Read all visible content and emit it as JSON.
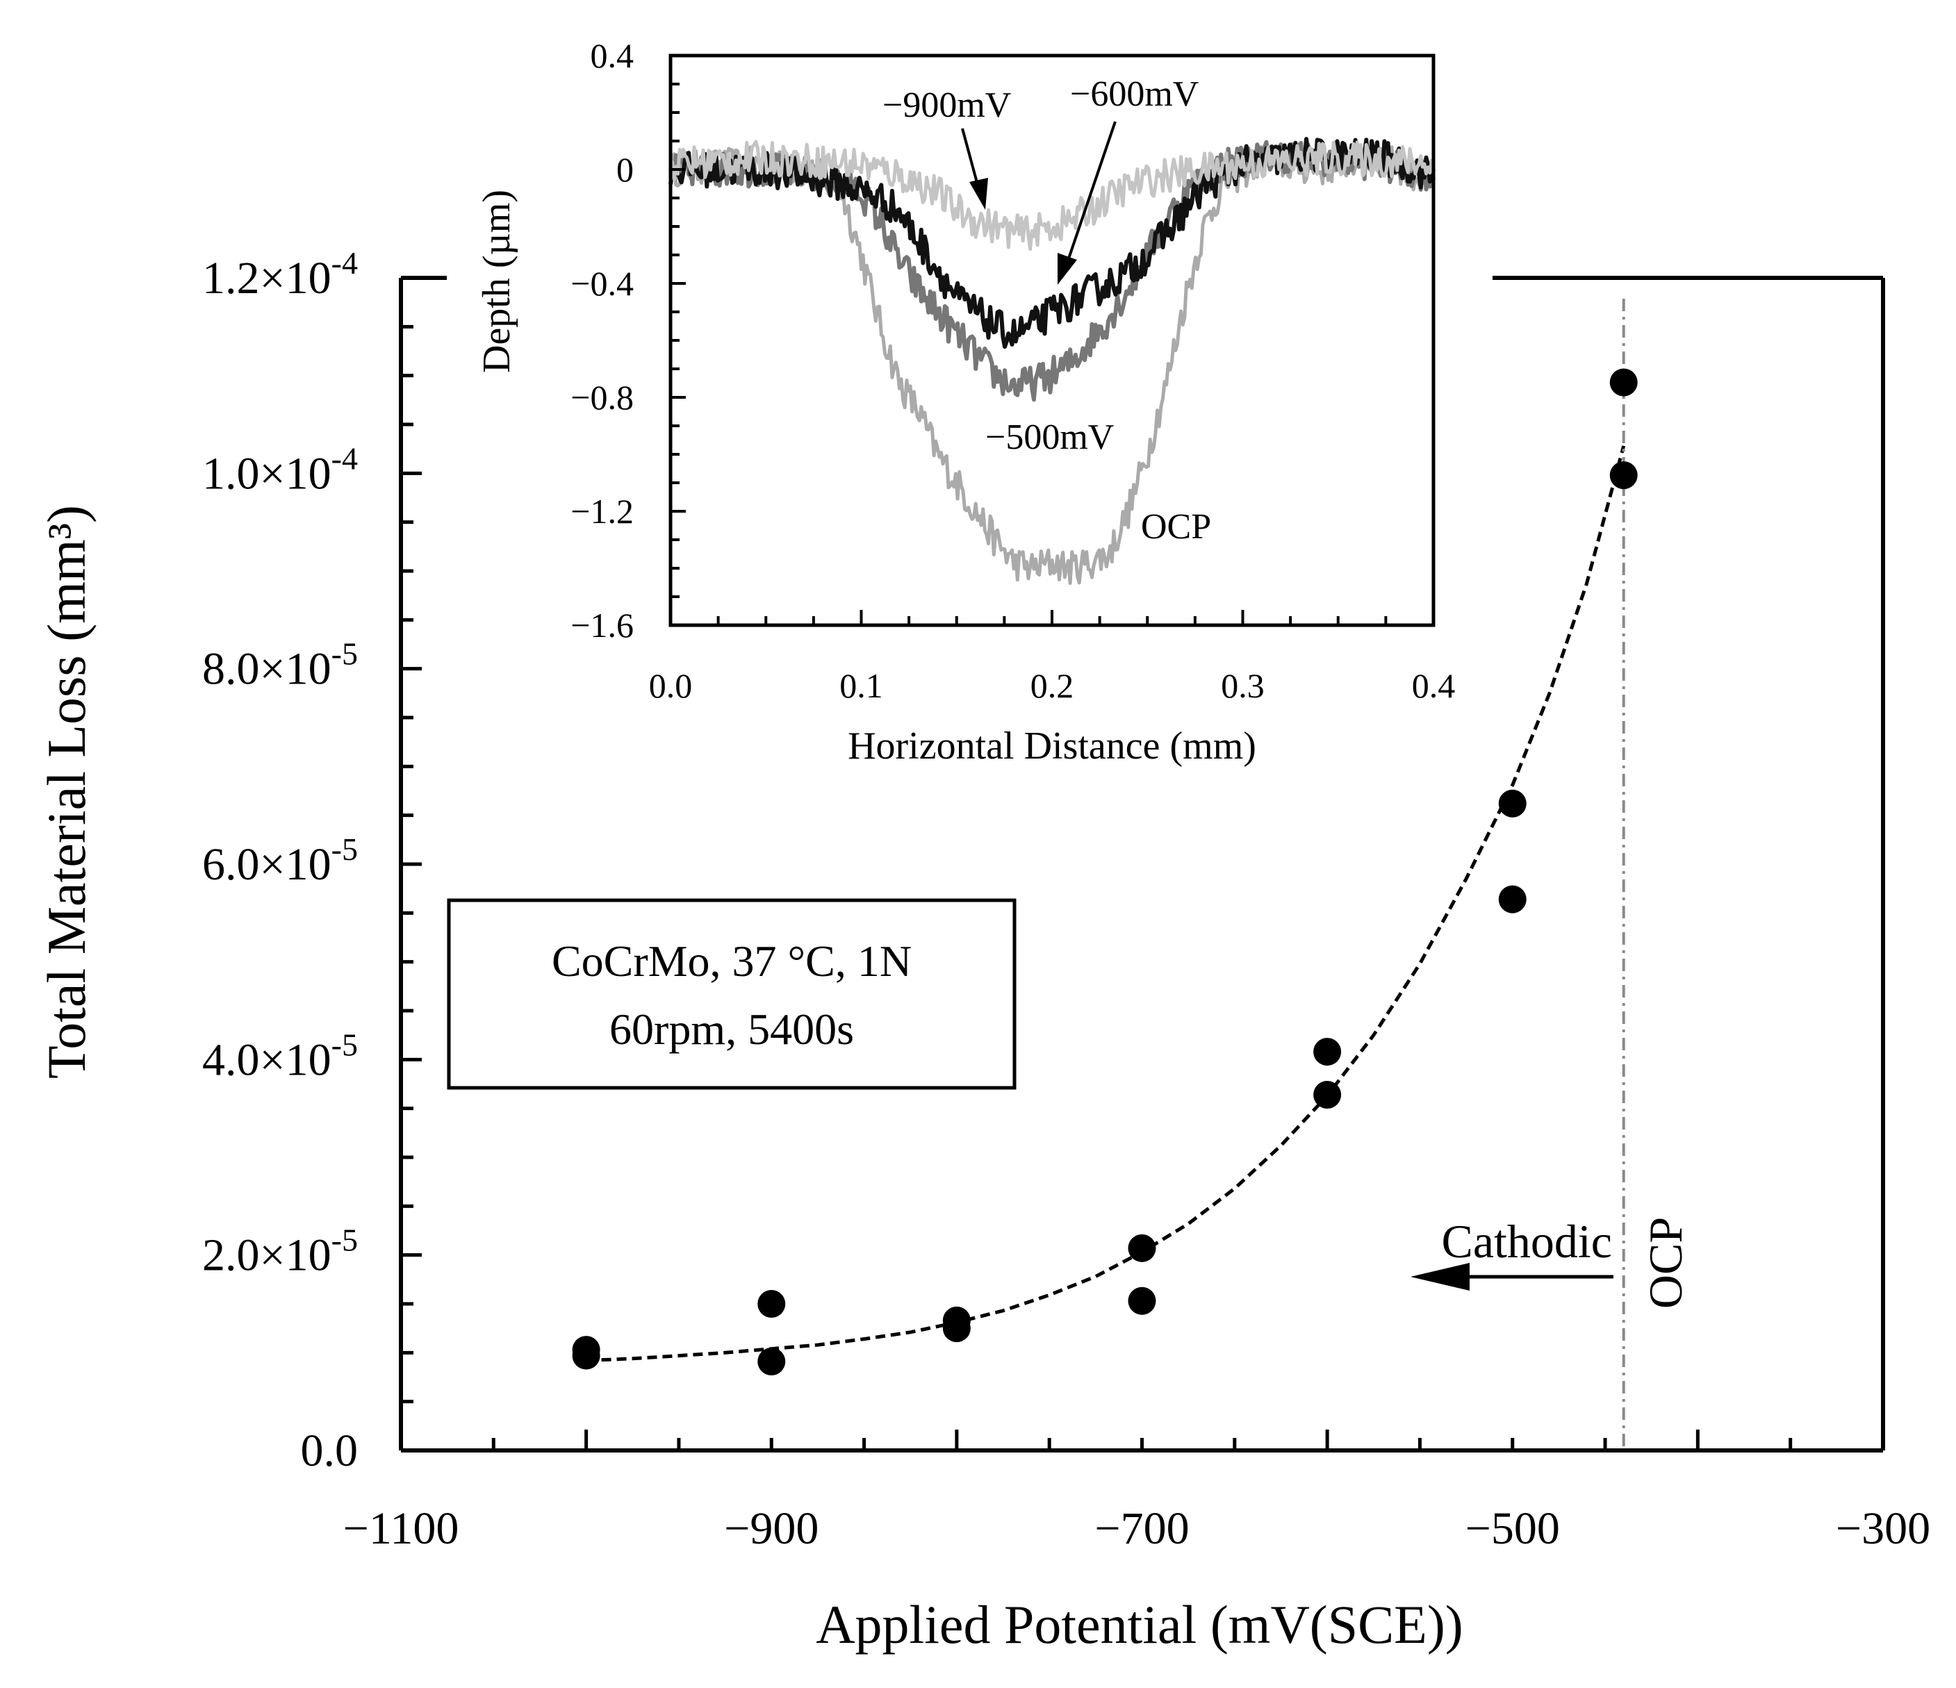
{
  "chart_data": [
    {
      "id": "main",
      "type": "scatter",
      "title": "",
      "xlabel": "Applied Potential (mV(SCE))",
      "ylabel": "Total Material Loss (mm³)",
      "xlim": [
        -1100,
        -300
      ],
      "ylim": [
        0,
        0.00012
      ],
      "x_ticks": [
        {
          "value": -1100,
          "label": "−1100"
        },
        {
          "value": -900,
          "label": "−900"
        },
        {
          "value": -700,
          "label": "−700"
        },
        {
          "value": -500,
          "label": "−500"
        },
        {
          "value": -300,
          "label": "−300"
        }
      ],
      "y_ticks": [
        {
          "value": 0,
          "mant": "0.0",
          "exp": ""
        },
        {
          "value": 2e-05,
          "mant": "2.0×10",
          "exp": "-5"
        },
        {
          "value": 4e-05,
          "mant": "4.0×10",
          "exp": "-5"
        },
        {
          "value": 6e-05,
          "mant": "6.0×10",
          "exp": "-5"
        },
        {
          "value": 8e-05,
          "mant": "8.0×10",
          "exp": "-5"
        },
        {
          "value": 0.0001,
          "mant": "1.0×10",
          "exp": "-4"
        },
        {
          "value": 0.00012,
          "mant": "1.2×10",
          "exp": "-4"
        }
      ],
      "points": [
        {
          "x": -1000,
          "y": 1.03e-05
        },
        {
          "x": -1000,
          "y": 9.7e-06
        },
        {
          "x": -900,
          "y": 1.5e-05
        },
        {
          "x": -900,
          "y": 9.1e-06
        },
        {
          "x": -800,
          "y": 1.33e-05
        },
        {
          "x": -800,
          "y": 1.25e-05
        },
        {
          "x": -700,
          "y": 2.07e-05
        },
        {
          "x": -700,
          "y": 1.53e-05
        },
        {
          "x": -600,
          "y": 4.08e-05
        },
        {
          "x": -600,
          "y": 3.64e-05
        },
        {
          "x": -500,
          "y": 6.62e-05
        },
        {
          "x": -500,
          "y": 5.64e-05
        },
        {
          "x": -440,
          "y": 0.0001093
        },
        {
          "x": -440,
          "y": 9.98e-05
        }
      ],
      "fit_curve": {
        "style": "dashed",
        "x": [
          -1000,
          -975,
          -950,
          -925,
          -900,
          -875,
          -850,
          -825,
          -800,
          -775,
          -750,
          -725,
          -700,
          -675,
          -650,
          -625,
          -600,
          -575,
          -550,
          -525,
          -500,
          -480,
          -460,
          -440
        ],
        "y": [
          9.2e-06,
          9.4e-06,
          9.7e-06,
          1e-05,
          1.04e-05,
          1.08e-05,
          1.14e-05,
          1.21e-05,
          1.31e-05,
          1.43e-05,
          1.59e-05,
          1.78e-05,
          2.03e-05,
          2.32e-05,
          2.68e-05,
          3.12e-05,
          3.63e-05,
          4.25e-05,
          4.98e-05,
          5.85e-05,
          6.81e-05,
          7.75e-05,
          8.87e-05,
          0.0001028
        ]
      },
      "ocp_line": {
        "x": -440,
        "label": "OCP",
        "style": "dash-dot",
        "color": "#8a8a8a"
      },
      "arrow_annotation": {
        "label": "Cathodic",
        "direction": "left"
      },
      "info_box": {
        "line1": "CoCrMo, 37 °C, 1N",
        "line2": "60rpm, 5400s"
      }
    },
    {
      "id": "inset",
      "type": "line",
      "title": "",
      "xlabel": "Horizontal Distance (mm)",
      "ylabel": "Depth (µm)",
      "xlim": [
        0,
        0.4
      ],
      "ylim": [
        -1.6,
        0.4
      ],
      "x_ticks": [
        {
          "value": 0,
          "label": "0.0"
        },
        {
          "value": 0.1,
          "label": "0.1"
        },
        {
          "value": 0.2,
          "label": "0.2"
        },
        {
          "value": 0.3,
          "label": "0.3"
        },
        {
          "value": 0.4,
          "label": "0.4"
        }
      ],
      "y_ticks": [
        {
          "value": 0.4,
          "label": "0.4"
        },
        {
          "value": 0,
          "label": "0"
        },
        {
          "value": -0.4,
          "label": "−0.4"
        },
        {
          "value": -0.8,
          "label": "−0.8"
        },
        {
          "value": -1.2,
          "label": "−1.2"
        },
        {
          "value": -1.6,
          "label": "−1.6"
        }
      ],
      "series": [
        {
          "name": "OCP",
          "color": "#aaaaaa",
          "x": [
            0,
            0.04,
            0.07,
            0.09,
            0.1,
            0.11,
            0.12,
            0.13,
            0.14,
            0.15,
            0.16,
            0.17,
            0.18,
            0.19,
            0.2,
            0.21,
            0.22,
            0.23,
            0.24,
            0.25,
            0.26,
            0.27,
            0.28,
            0.29,
            0.31,
            0.34,
            0.37,
            0.4
          ],
          "y": [
            0,
            0.02,
            0,
            -0.08,
            -0.3,
            -0.55,
            -0.75,
            -0.85,
            -1.0,
            -1.1,
            -1.2,
            -1.3,
            -1.38,
            -1.4,
            -1.38,
            -1.4,
            -1.38,
            -1.35,
            -1.2,
            -1.0,
            -0.75,
            -0.45,
            -0.2,
            -0.05,
            0.03,
            0,
            0.05,
            -0.05
          ]
        },
        {
          "name": "−500mV",
          "color": "#777777",
          "x": [
            0,
            0.05,
            0.08,
            0.1,
            0.11,
            0.12,
            0.13,
            0.14,
            0.15,
            0.16,
            0.17,
            0.18,
            0.19,
            0.2,
            0.21,
            0.22,
            0.23,
            0.24,
            0.25,
            0.26,
            0.27,
            0.29,
            0.32,
            0.36,
            0.4
          ],
          "y": [
            0,
            0,
            -0.02,
            -0.08,
            -0.18,
            -0.32,
            -0.42,
            -0.5,
            -0.58,
            -0.65,
            -0.72,
            -0.76,
            -0.75,
            -0.72,
            -0.68,
            -0.6,
            -0.52,
            -0.42,
            -0.3,
            -0.18,
            -0.08,
            0.02,
            0.05,
            0.03,
            -0.02
          ]
        },
        {
          "name": "−600mV",
          "color": "#111111",
          "x": [
            0,
            0.05,
            0.09,
            0.11,
            0.12,
            0.13,
            0.14,
            0.15,
            0.16,
            0.17,
            0.18,
            0.19,
            0.2,
            0.21,
            0.22,
            0.23,
            0.24,
            0.25,
            0.26,
            0.27,
            0.28,
            0.3,
            0.33,
            0.37,
            0.4
          ],
          "y": [
            0,
            0,
            -0.05,
            -0.1,
            -0.15,
            -0.25,
            -0.35,
            -0.45,
            -0.5,
            -0.55,
            -0.58,
            -0.55,
            -0.5,
            -0.47,
            -0.43,
            -0.4,
            -0.36,
            -0.3,
            -0.22,
            -0.14,
            -0.06,
            0.02,
            0.05,
            0.05,
            -0.02
          ]
        },
        {
          "name": "−900mV",
          "color": "#c4c4c4",
          "x": [
            0,
            0.05,
            0.1,
            0.12,
            0.14,
            0.15,
            0.16,
            0.17,
            0.18,
            0.19,
            0.2,
            0.21,
            0.22,
            0.23,
            0.24,
            0.26,
            0.3,
            0.35,
            0.4
          ],
          "y": [
            0.02,
            0.04,
            0.02,
            -0.02,
            -0.08,
            -0.14,
            -0.18,
            -0.2,
            -0.22,
            -0.22,
            -0.2,
            -0.18,
            -0.14,
            -0.1,
            -0.06,
            -0.02,
            0.02,
            0.04,
            0.02
          ]
        }
      ],
      "annotations": [
        {
          "label": "−900mV"
        },
        {
          "label": "−600mV"
        },
        {
          "label": "−500mV"
        },
        {
          "label": "OCP"
        }
      ]
    }
  ]
}
